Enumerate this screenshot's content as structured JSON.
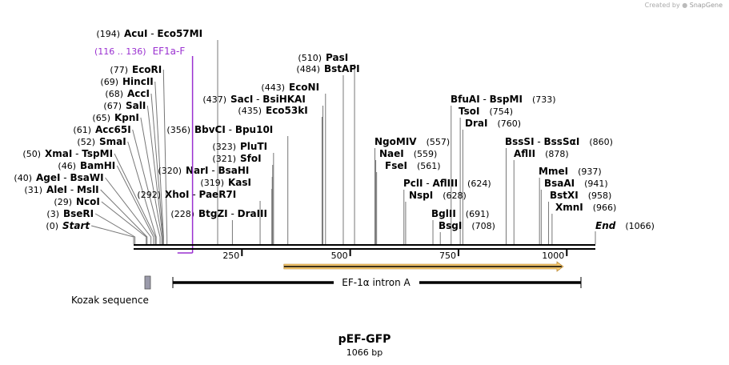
{
  "credit": {
    "text": "Created by",
    "brand": "SnapGene"
  },
  "map": {
    "name": "pEF-GFP",
    "length_label": "1066 bp",
    "length": 1066
  },
  "sites": [
    {
      "pos": "(0)",
      "names": [
        "Start"
      ],
      "bp": 0,
      "italic": true
    },
    {
      "pos": "(3)",
      "names": [
        "BseRI"
      ],
      "bp": 3
    },
    {
      "pos": "(29)",
      "names": [
        "NcoI"
      ],
      "bp": 29
    },
    {
      "pos": "(31)",
      "names": [
        "AleI",
        "MslI"
      ],
      "bp": 31
    },
    {
      "pos": "(40)",
      "names": [
        "AgeI",
        "BsaWI"
      ],
      "bp": 40
    },
    {
      "pos": "(46)",
      "names": [
        "BamHI"
      ],
      "bp": 46
    },
    {
      "pos": "(50)",
      "names": [
        "XmaI",
        "TspMI"
      ],
      "bp": 50
    },
    {
      "pos": "(52)",
      "names": [
        "SmaI"
      ],
      "bp": 52
    },
    {
      "pos": "(61)",
      "names": [
        "Acc65I"
      ],
      "bp": 61
    },
    {
      "pos": "(65)",
      "names": [
        "KpnI"
      ],
      "bp": 65
    },
    {
      "pos": "(67)",
      "names": [
        "SalI"
      ],
      "bp": 67
    },
    {
      "pos": "(68)",
      "names": [
        "AccI"
      ],
      "bp": 68
    },
    {
      "pos": "(69)",
      "names": [
        "HincII"
      ],
      "bp": 69
    },
    {
      "pos": "(77)",
      "names": [
        "EcoRI"
      ],
      "bp": 77
    },
    {
      "pos": "(194)",
      "names": [
        "AcuI",
        "Eco57MI"
      ],
      "bp": 194
    },
    {
      "pos": "(228)",
      "names": [
        "BtgZI",
        "DraIII"
      ],
      "bp": 228
    },
    {
      "pos": "(292)",
      "names": [
        "XhoI",
        "PaeR7I"
      ],
      "bp": 292
    },
    {
      "pos": "(320)",
      "names": [
        "NarI",
        "BsaHI"
      ],
      "bp": 320
    },
    {
      "pos": "(319)",
      "names": [
        "KasI"
      ],
      "bp": 319
    },
    {
      "pos": "(321)",
      "names": [
        "SfoI"
      ],
      "bp": 321
    },
    {
      "pos": "(323)",
      "names": [
        "PluTI"
      ],
      "bp": 323
    },
    {
      "pos": "(356)",
      "names": [
        "BbvCI",
        "Bpu10I"
      ],
      "bp": 356
    },
    {
      "pos": "(435)",
      "names": [
        "Eco53kI"
      ],
      "bp": 435
    },
    {
      "pos": "(437)",
      "names": [
        "SacI",
        "BsiHKAI"
      ],
      "bp": 437
    },
    {
      "pos": "(443)",
      "names": [
        "EcoNI"
      ],
      "bp": 443
    },
    {
      "pos": "(484)",
      "names": [
        "BstAPI"
      ],
      "bp": 484
    },
    {
      "pos": "(510)",
      "names": [
        "PasI"
      ],
      "bp": 510
    },
    {
      "pos": "(557)",
      "names": [
        "NgoMIV"
      ],
      "bp": 557
    },
    {
      "pos": "(559)",
      "names": [
        "NaeI"
      ],
      "bp": 559
    },
    {
      "pos": "(561)",
      "names": [
        "FseI"
      ],
      "bp": 561
    },
    {
      "pos": "(624)",
      "names": [
        "PclI",
        "AflIII"
      ],
      "bp": 624
    },
    {
      "pos": "(628)",
      "names": [
        "NspI"
      ],
      "bp": 628
    },
    {
      "pos": "(691)",
      "names": [
        "BglII"
      ],
      "bp": 691
    },
    {
      "pos": "(708)",
      "names": [
        "BsgI"
      ],
      "bp": 708
    },
    {
      "pos": "(733)",
      "names": [
        "BfuAI",
        "BspMI"
      ],
      "bp": 733
    },
    {
      "pos": "(754)",
      "names": [
        "TsoI"
      ],
      "bp": 754
    },
    {
      "pos": "(760)",
      "names": [
        "DraI"
      ],
      "bp": 760
    },
    {
      "pos": "(860)",
      "names": [
        "BssSI",
        "BssSαI"
      ],
      "bp": 860
    },
    {
      "pos": "(878)",
      "names": [
        "AflII"
      ],
      "bp": 878
    },
    {
      "pos": "(937)",
      "names": [
        "MmeI"
      ],
      "bp": 937
    },
    {
      "pos": "(941)",
      "names": [
        "BsaAI"
      ],
      "bp": 941
    },
    {
      "pos": "(958)",
      "names": [
        "BstXI"
      ],
      "bp": 958
    },
    {
      "pos": "(966)",
      "names": [
        "XmnI"
      ],
      "bp": 966
    },
    {
      "pos": "(1066)",
      "names": [
        "End"
      ],
      "bp": 1066,
      "italic": true
    }
  ],
  "primer": {
    "range": "(116 .. 136)",
    "name": "EF1a-F",
    "start": 116,
    "end": 136,
    "color": "#9a30d0"
  },
  "ticks": [
    250,
    500,
    750,
    1000
  ],
  "features": {
    "kozak": {
      "label": "Kozak sequence",
      "start": 27,
      "end": 37,
      "color": "#9a9aaa"
    },
    "intron": {
      "label": "EF-1α intron A",
      "start": 95,
      "end": 1000
    },
    "arrow": {
      "start": 347,
      "end": 992,
      "color": "#f2c66e"
    }
  },
  "colors": {
    "line": "#000000",
    "leader": "#777777"
  }
}
